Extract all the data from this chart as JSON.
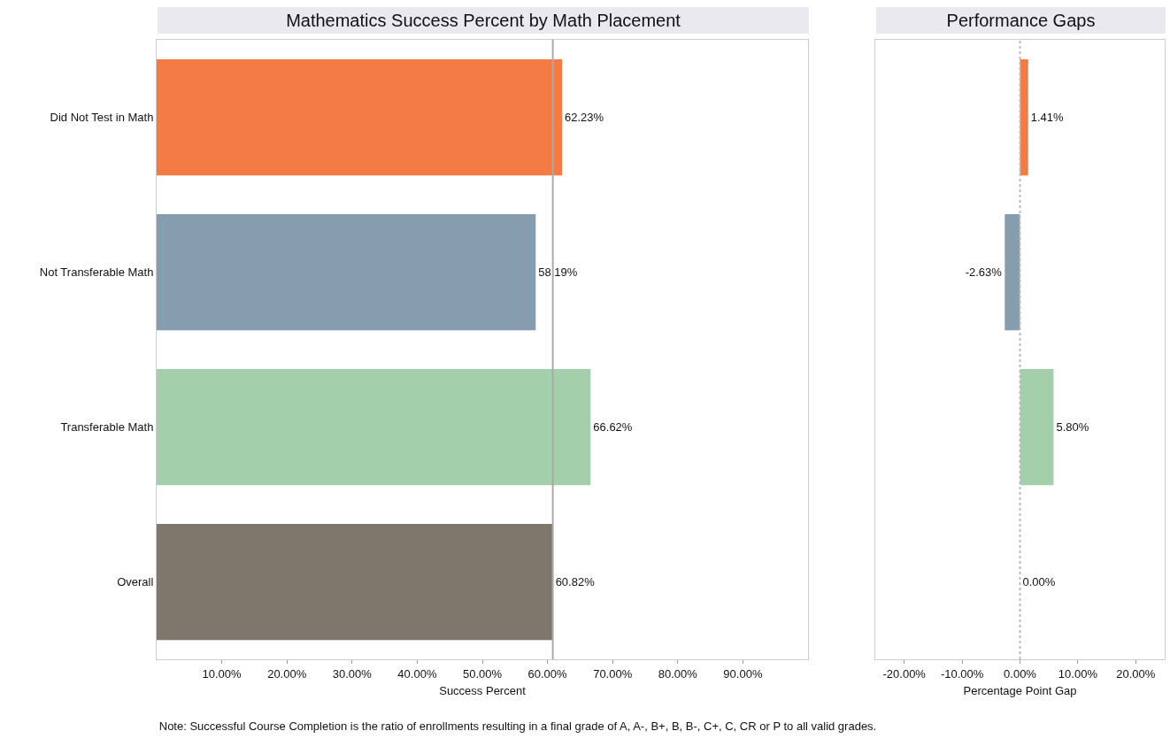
{
  "chart_data": [
    {
      "type": "bar",
      "orientation": "horizontal",
      "title": "Mathematics Success Percent by Math Placement",
      "xlabel": "Success Percent",
      "categories": [
        "Did Not Test in Math",
        "Not Transferable Math",
        "Transferable Math",
        "Overall"
      ],
      "values": [
        62.23,
        58.19,
        66.62,
        60.82
      ],
      "value_labels": [
        "62.23%",
        "58.19%",
        "66.62%",
        "60.82%"
      ],
      "colors": [
        "#f47b43",
        "#869daf",
        "#a3cfab",
        "#7f766c"
      ],
      "xlim": [
        0,
        100
      ],
      "xticks": [
        {
          "value": 10,
          "label": "10.00%"
        },
        {
          "value": 20,
          "label": "20.00%"
        },
        {
          "value": 30,
          "label": "30.00%"
        },
        {
          "value": 40,
          "label": "40.00%"
        },
        {
          "value": 50,
          "label": "50.00%"
        },
        {
          "value": 60,
          "label": "60.00%"
        },
        {
          "value": 70,
          "label": "70.00%"
        },
        {
          "value": 80,
          "label": "80.00%"
        },
        {
          "value": 90,
          "label": "90.00%"
        }
      ],
      "ref_lines": [
        {
          "axis": "x",
          "value": 60.82,
          "color": "#aaaaaa",
          "line_style": "solid"
        }
      ],
      "grid": false,
      "annotations": [
        "Note: Successful Course Completion is the ratio of enrollments resulting in a final grade of A, A-, B+, B, B-, C+, C, CR or P to all valid grades."
      ]
    },
    {
      "type": "bar",
      "orientation": "horizontal",
      "title": "Performance Gaps",
      "xlabel": "Percentage Point Gap",
      "categories": [
        null,
        null,
        null,
        null
      ],
      "values": [
        1.41,
        -2.63,
        5.8,
        0.0
      ],
      "value_labels": [
        "1.41%",
        "-2.63%",
        "5.80%",
        "0.00%"
      ],
      "colors": [
        "#f47b43",
        "#869daf",
        "#a3cfab",
        "#7f766c"
      ],
      "xlim": [
        -25,
        25
      ],
      "xticks": [
        {
          "value": -20,
          "label": "-20.00%"
        },
        {
          "value": -10,
          "label": "-10.00%"
        },
        {
          "value": 0,
          "label": "0.00%"
        },
        {
          "value": 10,
          "label": "10.00%"
        },
        {
          "value": 20,
          "label": "20.00%"
        }
      ],
      "ref_lines": [
        {
          "axis": "x",
          "value": 0,
          "color": "#bbbbbb",
          "line_style": "dotted"
        }
      ],
      "tick_labels": "x",
      "grid": false
    }
  ]
}
